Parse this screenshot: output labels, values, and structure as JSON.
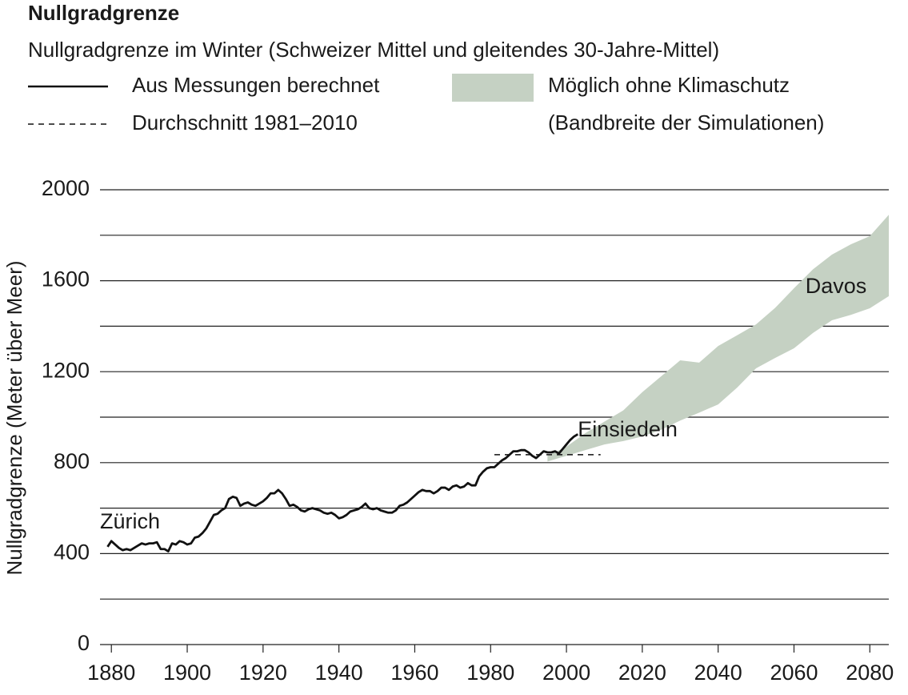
{
  "chart_data": {
    "type": "line",
    "title": "Nullgradgrenze",
    "subtitle": "Nullgradgrenze im Winter (Schweizer Mittel und gleitendes 30-Jahre-Mittel)",
    "y_label": "Nullgradgrenze (Meter über Meer)",
    "xlim": [
      1877,
      2085
    ],
    "xticks": [
      1880,
      1900,
      1920,
      1940,
      1960,
      1980,
      2000,
      2020,
      2040,
      2060,
      2080
    ],
    "ylim": [
      0,
      2000
    ],
    "yticks": [
      0,
      400,
      800,
      1200,
      1600,
      2000
    ],
    "ygrid": [
      200,
      600,
      1000,
      1400,
      1800
    ],
    "grid": true,
    "x": [
      1879,
      1880,
      1881,
      1882,
      1883,
      1884,
      1885,
      1886,
      1887,
      1888,
      1889,
      1890,
      1891,
      1892,
      1893,
      1894,
      1895,
      1896,
      1897,
      1898,
      1899,
      1900,
      1901,
      1902,
      1903,
      1904,
      1905,
      1906,
      1907,
      1908,
      1909,
      1910,
      1911,
      1912,
      1913,
      1914,
      1915,
      1916,
      1917,
      1918,
      1919,
      1920,
      1921,
      1922,
      1923,
      1924,
      1925,
      1926,
      1927,
      1928,
      1929,
      1930,
      1931,
      1932,
      1933,
      1934,
      1935,
      1936,
      1937,
      1938,
      1939,
      1940,
      1941,
      1942,
      1943,
      1944,
      1945,
      1946,
      1947,
      1948,
      1949,
      1950,
      1951,
      1952,
      1953,
      1954,
      1955,
      1956,
      1957,
      1958,
      1959,
      1960,
      1961,
      1962,
      1963,
      1964,
      1965,
      1966,
      1967,
      1968,
      1969,
      1970,
      1971,
      1972,
      1973,
      1974,
      1975,
      1976,
      1977,
      1978,
      1979,
      1980,
      1981,
      1982,
      1983,
      1984,
      1985,
      1986,
      1987,
      1988,
      1989,
      1990,
      1991,
      1992,
      1993,
      1994,
      1995,
      1996,
      1997,
      1998,
      1999,
      2000,
      2001,
      2002,
      2003
    ],
    "series": [
      {
        "name": "Aus Messungen berechnet",
        "color": "#111111",
        "values": [
          430,
          455,
          440,
          425,
          415,
          420,
          415,
          425,
          435,
          445,
          440,
          445,
          445,
          450,
          420,
          420,
          410,
          445,
          440,
          455,
          450,
          440,
          445,
          470,
          475,
          490,
          510,
          540,
          570,
          575,
          590,
          600,
          640,
          650,
          645,
          610,
          620,
          625,
          615,
          610,
          620,
          630,
          645,
          665,
          665,
          680,
          665,
          640,
          610,
          615,
          605,
          590,
          585,
          595,
          600,
          595,
          590,
          580,
          575,
          580,
          570,
          555,
          560,
          570,
          585,
          590,
          595,
          605,
          620,
          600,
          595,
          600,
          590,
          585,
          580,
          580,
          590,
          610,
          615,
          625,
          640,
          655,
          670,
          680,
          675,
          675,
          665,
          675,
          690,
          690,
          680,
          695,
          700,
          690,
          695,
          710,
          700,
          700,
          740,
          760,
          775,
          780,
          780,
          795,
          810,
          820,
          835,
          850,
          850,
          855,
          855,
          845,
          830,
          820,
          835,
          850,
          845,
          845,
          850,
          840,
          860,
          880,
          900,
          915,
          925
        ]
      }
    ],
    "reference_line": {
      "name": "Durchschnitt 1981–2010",
      "color": "#111111",
      "x": [
        1981,
        2009
      ],
      "value": 835
    },
    "band": {
      "name": "Möglich ohne Klimaschutz",
      "note": "(Bandbreite der Simulationen)",
      "color": "#c5d1c3",
      "x": [
        1995,
        2000,
        2005,
        2010,
        2015,
        2020,
        2025,
        2030,
        2035,
        2040,
        2045,
        2050,
        2055,
        2060,
        2065,
        2070,
        2075,
        2080,
        2085
      ],
      "lower": [
        805,
        830,
        855,
        880,
        895,
        915,
        945,
        985,
        1020,
        1056,
        1130,
        1215,
        1260,
        1303,
        1370,
        1426,
        1450,
        1479,
        1532
      ],
      "upper": [
        830,
        870,
        930,
        980,
        1030,
        1110,
        1180,
        1250,
        1240,
        1313,
        1360,
        1408,
        1480,
        1567,
        1650,
        1715,
        1760,
        1796,
        1890
      ]
    },
    "annotations": [
      {
        "text": "Zürich",
        "x": 1877,
        "y": 535
      },
      {
        "text": "Einsiedeln",
        "x": 2003,
        "y": 940
      },
      {
        "text": "Davos",
        "x": 2063,
        "y": 1570
      }
    ]
  }
}
